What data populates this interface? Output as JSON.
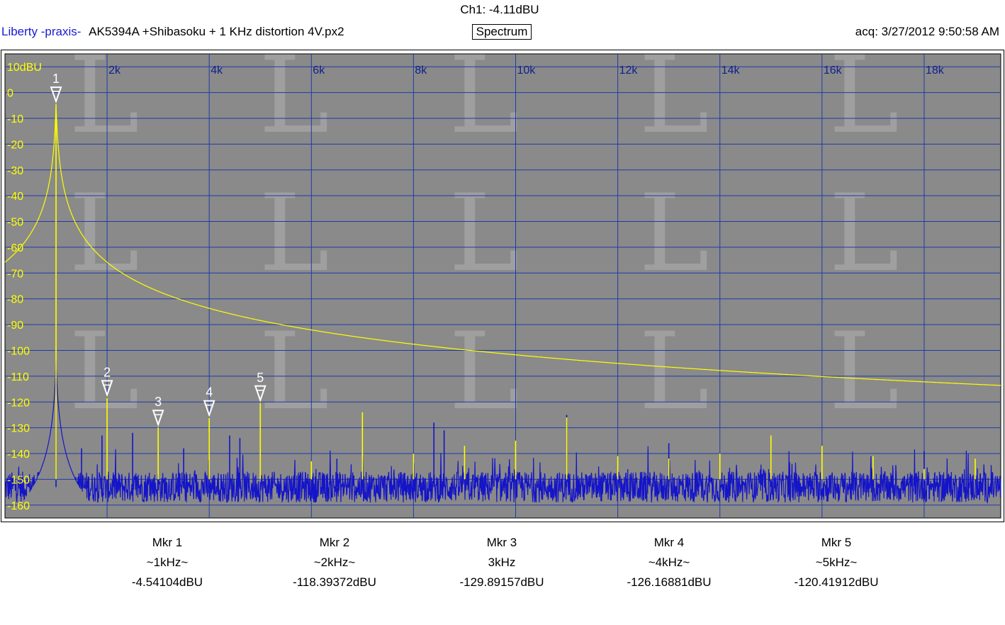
{
  "header": {
    "channel_readout": "Ch1: -4.11dBU",
    "app_name": "Liberty -praxis-",
    "file_title": "AK5394A +Shibasoku + 1 KHz distortion 4V.px2",
    "view_button": "Spectrum",
    "acquired": "acq: 3/27/2012 9:50:58 AM"
  },
  "colors": {
    "plot_background": "#8a8a8a",
    "grid": "#1e3aa8",
    "trace_1": "#ffff00",
    "trace_2": "#1414c8",
    "axis_label_y": "#ffff00",
    "axis_label_x": "#10208c",
    "marker": "#ffffff",
    "app_name": "#1a1ad6"
  },
  "chart_data": {
    "type": "line",
    "x_scale": "linear",
    "xlim": [
      0,
      19500
    ],
    "ylim": [
      -165,
      15
    ],
    "x_ticks": [
      2000,
      4000,
      6000,
      8000,
      10000,
      12000,
      14000,
      16000,
      18000
    ],
    "x_tick_labels": [
      "2k",
      "4k",
      "6k",
      "8k",
      "10k",
      "12k",
      "14k",
      "16k",
      "18k"
    ],
    "y_ticks": [
      10,
      0,
      -10,
      -20,
      -30,
      -40,
      -50,
      -60,
      -70,
      -80,
      -90,
      -100,
      -110,
      -120,
      -130,
      -140,
      -150,
      -160
    ],
    "y_tick_labels": [
      "10dBU",
      "0",
      "-10",
      "-20",
      "-30",
      "-40",
      "-50",
      "-60",
      "-70",
      "-80",
      "-90",
      "-100",
      "-110",
      "-120",
      "-130",
      "-140",
      "-150",
      "-160"
    ],
    "grid": true,
    "series": [
      {
        "color": "#ffff00",
        "noise_floor": -150,
        "fundamental": {
          "x": 1000,
          "y": -4.54
        },
        "spurs": [
          {
            "x": 2000,
            "y": -118.4
          },
          {
            "x": 3000,
            "y": -129.9
          },
          {
            "x": 4000,
            "y": -126.2
          },
          {
            "x": 5000,
            "y": -120.4
          },
          {
            "x": 6000,
            "y": -143
          },
          {
            "x": 7000,
            "y": -124
          },
          {
            "x": 8000,
            "y": -140
          },
          {
            "x": 9000,
            "y": -137
          },
          {
            "x": 10000,
            "y": -135
          },
          {
            "x": 11000,
            "y": -126
          },
          {
            "x": 12000,
            "y": -141
          },
          {
            "x": 13000,
            "y": -142
          },
          {
            "x": 14000,
            "y": -140
          },
          {
            "x": 15000,
            "y": -133
          },
          {
            "x": 16000,
            "y": -137
          },
          {
            "x": 17000,
            "y": -141
          },
          {
            "x": 18000,
            "y": -146
          },
          {
            "x": 19000,
            "y": -142
          }
        ]
      },
      {
        "color": "#1414c8",
        "noise_floor": -153,
        "fundamental": {
          "x": 1000,
          "y": -104
        },
        "spurs": [
          {
            "x": 1500,
            "y": -138
          },
          {
            "x": 1900,
            "y": -133
          },
          {
            "x": 2500,
            "y": -132
          },
          {
            "x": 3500,
            "y": -138
          },
          {
            "x": 4000,
            "y": -132
          },
          {
            "x": 4400,
            "y": -133
          },
          {
            "x": 4600,
            "y": -134
          },
          {
            "x": 6500,
            "y": -142
          },
          {
            "x": 8000,
            "y": -140
          },
          {
            "x": 8400,
            "y": -128
          },
          {
            "x": 8600,
            "y": -131
          },
          {
            "x": 11000,
            "y": -125
          },
          {
            "x": 13000,
            "y": -136
          },
          {
            "x": 15000,
            "y": -137
          },
          {
            "x": 18000,
            "y": -139
          }
        ]
      }
    ],
    "markers": [
      {
        "label": "1",
        "x": 1000,
        "y": -4.54
      },
      {
        "label": "2",
        "x": 2000,
        "y": -118.39
      },
      {
        "label": "3",
        "x": 3000,
        "y": -129.89
      },
      {
        "label": "4",
        "x": 4000,
        "y": -126.17
      },
      {
        "label": "5",
        "x": 5000,
        "y": -120.42
      }
    ]
  },
  "marker_readouts": [
    {
      "name": "Mkr 1",
      "freq": "~1kHz~",
      "level": "-4.54104dBU"
    },
    {
      "name": "Mkr 2",
      "freq": "~2kHz~",
      "level": "-118.39372dBU"
    },
    {
      "name": "Mkr 3",
      "freq": "3kHz",
      "level": "-129.89157dBU"
    },
    {
      "name": "Mkr 4",
      "freq": "~4kHz~",
      "level": "-126.16881dBU"
    },
    {
      "name": "Mkr 5",
      "freq": "~5kHz~",
      "level": "-120.41912dBU"
    }
  ]
}
